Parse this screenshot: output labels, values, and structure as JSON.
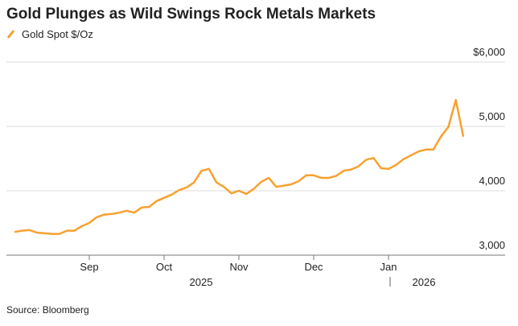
{
  "chart_data": {
    "type": "line",
    "title": "Gold Plunges as Wild Swings Rock Metals Markets",
    "source": "Source: Bloomberg",
    "categories": [
      null,
      null,
      null,
      null,
      null,
      null,
      null,
      null,
      null,
      null,
      "Sep",
      null,
      null,
      null,
      null,
      null,
      null,
      null,
      null,
      null,
      "Oct",
      null,
      null,
      null,
      null,
      null,
      null,
      null,
      null,
      null,
      "Nov",
      null,
      null,
      null,
      null,
      null,
      null,
      null,
      null,
      null,
      "Dec",
      null,
      null,
      null,
      null,
      null,
      null,
      null,
      null,
      null,
      "Jan",
      null,
      null,
      null,
      null,
      null,
      null,
      null,
      null,
      null,
      null
    ],
    "year_labels": [
      "2025",
      "2026"
    ],
    "series": [
      {
        "name": "Gold Spot $/Oz",
        "color": "#f7a12f",
        "values": [
          3360,
          3380,
          3390,
          3350,
          3340,
          3330,
          3330,
          3380,
          3380,
          3450,
          3500,
          3590,
          3630,
          3640,
          3660,
          3690,
          3660,
          3740,
          3750,
          3840,
          3890,
          3940,
          4010,
          4050,
          4130,
          4310,
          4340,
          4130,
          4060,
          3960,
          4000,
          3950,
          4030,
          4140,
          4200,
          4060,
          4080,
          4100,
          4150,
          4240,
          4240,
          4200,
          4200,
          4230,
          4310,
          4330,
          4380,
          4480,
          4510,
          4350,
          4340,
          4400,
          4490,
          4550,
          4610,
          4640,
          4640,
          4840,
          4990,
          5410,
          4840
        ]
      }
    ],
    "ylim": [
      3000,
      6000
    ],
    "yticks": [
      {
        "value": 3000,
        "label": "3,000"
      },
      {
        "value": 4000,
        "label": "4,000"
      },
      {
        "value": 5000,
        "label": "5,000"
      },
      {
        "value": 6000,
        "label": "$6,000"
      }
    ],
    "grid": true
  }
}
